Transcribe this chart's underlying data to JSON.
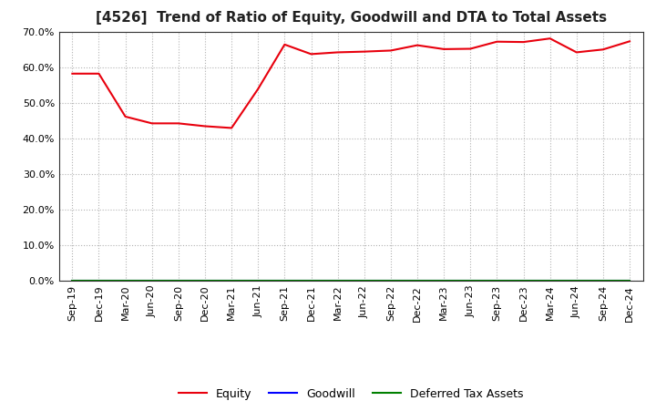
{
  "title": "[4526]  Trend of Ratio of Equity, Goodwill and DTA to Total Assets",
  "x_labels": [
    "Sep-19",
    "Dec-19",
    "Mar-20",
    "Jun-20",
    "Sep-20",
    "Dec-20",
    "Mar-21",
    "Jun-21",
    "Sep-21",
    "Dec-21",
    "Mar-22",
    "Jun-22",
    "Sep-22",
    "Dec-22",
    "Mar-23",
    "Jun-23",
    "Sep-23",
    "Dec-23",
    "Mar-24",
    "Jun-24",
    "Sep-24",
    "Dec-24"
  ],
  "equity": [
    0.583,
    0.583,
    0.462,
    0.443,
    0.443,
    0.435,
    0.43,
    0.54,
    0.665,
    0.638,
    0.643,
    0.645,
    0.648,
    0.663,
    0.652,
    0.653,
    0.673,
    0.672,
    0.682,
    0.643,
    0.651,
    0.674
  ],
  "goodwill": [
    0.0,
    0.0,
    0.0,
    0.0,
    0.0,
    0.0,
    0.0,
    0.0,
    0.0,
    0.0,
    0.0,
    0.0,
    0.0,
    0.0,
    0.0,
    0.0,
    0.0,
    0.0,
    0.0,
    0.0,
    0.0,
    0.0
  ],
  "dta": [
    0.0,
    0.0,
    0.0,
    0.0,
    0.0,
    0.0,
    0.0,
    0.0,
    0.0,
    0.0,
    0.0,
    0.0,
    0.0,
    0.0,
    0.0,
    0.0,
    0.0,
    0.0,
    0.0,
    0.0,
    0.0,
    0.0
  ],
  "equity_color": "#e8000d",
  "goodwill_color": "#0000ff",
  "dta_color": "#008000",
  "ylim": [
    0.0,
    0.7
  ],
  "yticks": [
    0.0,
    0.1,
    0.2,
    0.3,
    0.4,
    0.5,
    0.6,
    0.7
  ],
  "background_color": "#ffffff",
  "grid_color": "#aaaaaa",
  "title_fontsize": 11,
  "tick_fontsize": 8,
  "legend_labels": [
    "Equity",
    "Goodwill",
    "Deferred Tax Assets"
  ]
}
